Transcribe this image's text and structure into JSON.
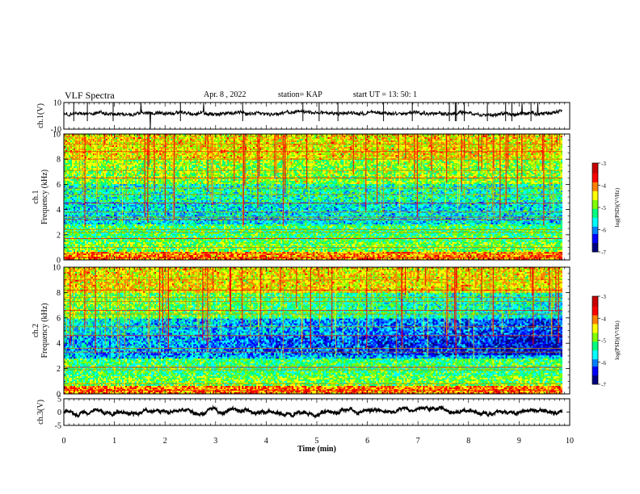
{
  "header": {
    "title": "VLF Spectra",
    "date": "Apr. 8 , 2022",
    "station": "station= KAP",
    "start": "start  UT  =   13: 50: 1"
  },
  "colors": {
    "frame": "#000000",
    "colormap": [
      "#00007f",
      "#0000ff",
      "#0080ff",
      "#00ffff",
      "#00ff80",
      "#80ff00",
      "#ffff00",
      "#ff8000",
      "#ff0000",
      "#c80000"
    ]
  },
  "chart_data": [
    {
      "type": "line",
      "panel": "ch1-waveform",
      "ylabel": "ch.1(V)",
      "ylim": [
        -10,
        10
      ],
      "y_tick_labels": [
        "10",
        "-10"
      ],
      "baseline": 2,
      "noise_amplitude": 2.5
    },
    {
      "type": "heatmap",
      "panel": "ch1-spectrogram",
      "ylabel": "ch.1\nFrequency  (kHz)",
      "ylim": [
        0,
        10
      ],
      "y_ticks": [
        0,
        2,
        4,
        6,
        8,
        10
      ],
      "y_tick_labels": [
        "0",
        "2",
        "4",
        "6",
        "8",
        "10"
      ],
      "colorbar": {
        "label": "log(PSD)(V²/Hz)",
        "range": [
          -7,
          -3
        ],
        "tick_labels": [
          "-3",
          "-4",
          "-5",
          "-6",
          "-7"
        ]
      },
      "horizontal_lines_khz": [
        0.2,
        0.5,
        1.0,
        1.7,
        2.2,
        2.4,
        3.2,
        3.4,
        3.8,
        4.5,
        5.2,
        5.7,
        6.5,
        7.1,
        8.0,
        8.6,
        9.2
      ]
    },
    {
      "type": "heatmap",
      "panel": "ch2-spectrogram",
      "ylabel": "ch.2\nFrequency  (kHz)",
      "ylim": [
        0,
        10
      ],
      "y_ticks": [
        0,
        2,
        4,
        6,
        8,
        10
      ],
      "y_tick_labels": [
        "0",
        "2",
        "4",
        "6",
        "8",
        "10"
      ],
      "colorbar": {
        "label": "log(PSD)(V²/Hz)",
        "range": [
          -7,
          -3
        ],
        "tick_labels": [
          "-3",
          "-4",
          "-5",
          "-6",
          "-7"
        ]
      },
      "horizontal_lines_khz": [
        0.3,
        0.8,
        1.9,
        2.1,
        3.3,
        3.6,
        4.6,
        5.3,
        6.3,
        6.6,
        7.3,
        7.6,
        8.2,
        9.0
      ]
    },
    {
      "type": "line",
      "panel": "ch3-waveform",
      "ylabel": "ch.3(V)",
      "ylim": [
        -5,
        5
      ],
      "y_tick_labels": [
        "5",
        "0",
        "-5"
      ],
      "baseline": 0,
      "noise_amplitude": 0.6
    }
  ],
  "x_axis": {
    "label": "Time  (min)",
    "range": [
      0,
      10
    ],
    "ticks": [
      0,
      1,
      2,
      3,
      4,
      5,
      6,
      7,
      8,
      9,
      10
    ],
    "tick_labels": [
      "0",
      "1",
      "2",
      "3",
      "4",
      "5",
      "6",
      "7",
      "8",
      "9",
      "10"
    ],
    "data_end": 9.85
  }
}
